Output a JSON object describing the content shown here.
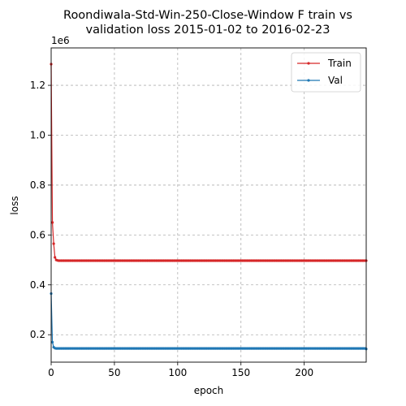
{
  "chart_data": {
    "type": "line",
    "title_line1": "Roondiwala-Std-Win-250-Close-Window F train vs",
    "title_line2": "validation loss 2015-01-02 to 2016-02-23",
    "xlabel": "epoch",
    "ylabel": "loss",
    "y_offset_label": "1e6",
    "xlim": [
      0,
      249
    ],
    "ylim": [
      90000,
      1350000
    ],
    "x_ticks": [
      0,
      50,
      100,
      150,
      200
    ],
    "x_tick_labels": [
      "0",
      "50",
      "100",
      "150",
      "200"
    ],
    "y_ticks": [
      200000,
      400000,
      600000,
      800000,
      1000000,
      1200000
    ],
    "y_tick_labels": [
      "0.2",
      "0.4",
      "0.6",
      "0.8",
      "1.0",
      "1.2"
    ],
    "grid": true,
    "legend_position": "top-right",
    "epochs": 250,
    "series": [
      {
        "name": "Train",
        "color": "#d62728",
        "head": [
          1285000,
          650000,
          565000,
          510000,
          500000,
          498000
        ],
        "plateau": 497000
      },
      {
        "name": "Val",
        "color": "#1f77b4",
        "head": [
          365000,
          170000,
          150000,
          146000,
          145000
        ],
        "plateau": 145000,
        "tail": 143000
      }
    ]
  }
}
